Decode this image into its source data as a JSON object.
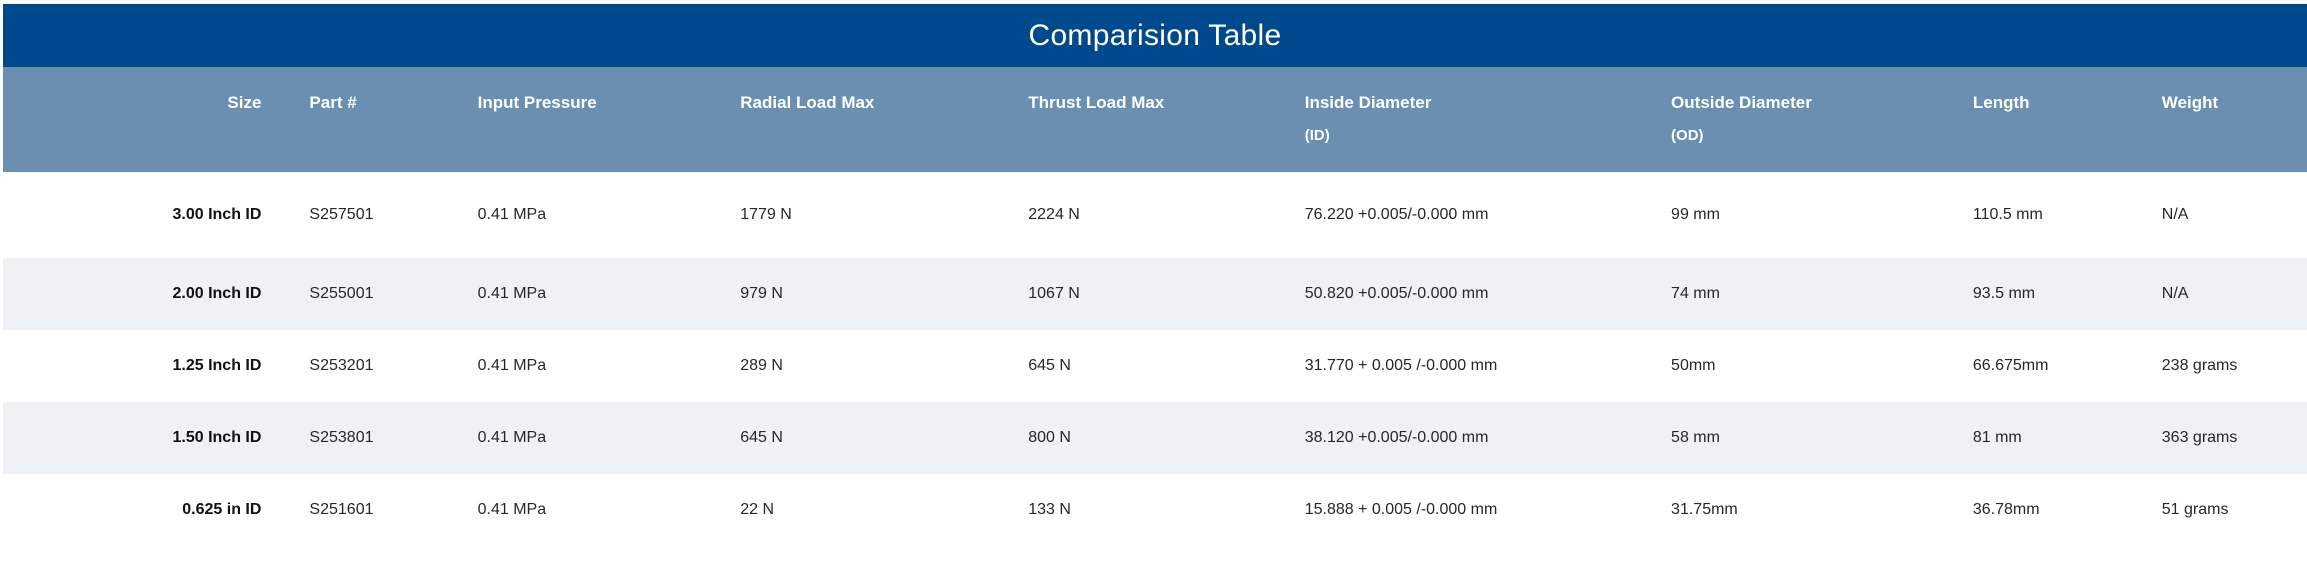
{
  "chart_data": {
    "type": "table",
    "title": "Comparision Table",
    "columns": [
      {
        "label": "Size",
        "sublabel": ""
      },
      {
        "label": "Part #",
        "sublabel": ""
      },
      {
        "label": "Input Pressure",
        "sublabel": ""
      },
      {
        "label": "Radial Load Max",
        "sublabel": ""
      },
      {
        "label": "Thrust Load Max",
        "sublabel": ""
      },
      {
        "label": "Inside Diameter",
        "sublabel": "(ID)"
      },
      {
        "label": "Outside Diameter",
        "sublabel": "(OD)"
      },
      {
        "label": "Length",
        "sublabel": ""
      },
      {
        "label": "Weight",
        "sublabel": ""
      }
    ],
    "rows": [
      [
        "3.00 Inch ID",
        "S257501",
        "0.41 MPa",
        "1779 N",
        "2224 N",
        "76.220 +0.005/-0.000 mm",
        "99 mm",
        "110.5 mm",
        "N/A"
      ],
      [
        "2.00 Inch ID",
        "S255001",
        "0.41 MPa",
        "979 N",
        "1067 N",
        "50.820 +0.005/-0.000 mm",
        "74 mm",
        "93.5 mm",
        "N/A"
      ],
      [
        "1.25 Inch ID",
        "S253201",
        "0.41 MPa",
        "289 N",
        "645 N",
        "31.770 + 0.005 /-0.000 mm",
        "50mm",
        "66.675mm",
        "238 grams"
      ],
      [
        "1.50 Inch ID",
        "S253801",
        "0.41 MPa",
        "645 N",
        "800 N",
        "38.120 +0.005/-0.000 mm",
        "58 mm",
        "81 mm",
        "363 grams"
      ],
      [
        "0.625 in ID",
        "S251601",
        "0.41 MPa",
        "22 N",
        "133 N",
        "15.888 + 0.005 /-0.000 mm",
        "31.75mm",
        "36.78mm",
        "51 grams"
      ]
    ]
  },
  "colors": {
    "title_bar_bg": "#00498C",
    "header_bg": "#6A8FB0",
    "header_text": "#FFFFFF",
    "row_bg": "#FFFFFF",
    "row_alt_bg": "#EEF1F6",
    "body_text": "#23282D"
  }
}
